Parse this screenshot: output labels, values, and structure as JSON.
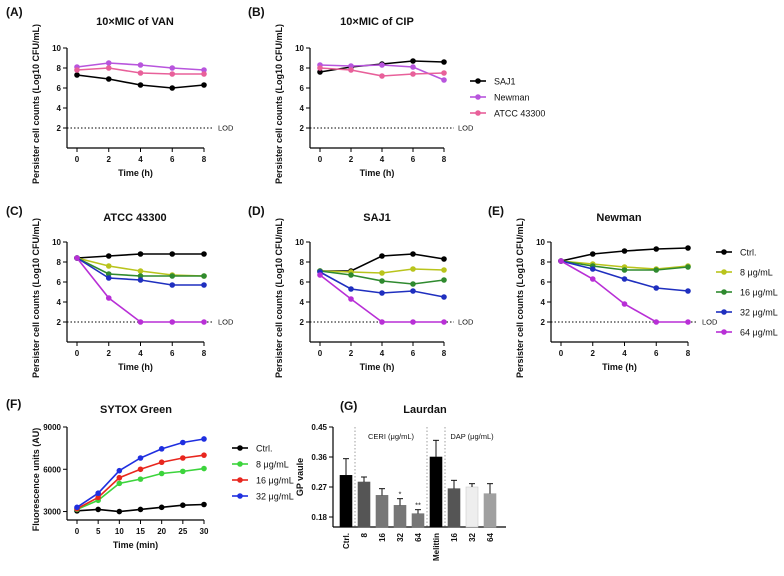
{
  "chart_data": [
    {
      "id": "A",
      "panel_label": "(A)",
      "type": "line",
      "title": "10×MIC of VAN",
      "xlabel": "Time (h)",
      "ylabel": "Persister cell counts (Log10 CFU/mL)",
      "x": [
        0,
        2,
        4,
        6,
        8
      ],
      "xticks": [
        "0",
        "2",
        "4",
        "6",
        "8"
      ],
      "ylim": [
        0,
        10
      ],
      "yticks": [
        "2",
        "4",
        "6",
        "8",
        "10"
      ],
      "lod": {
        "value": 2,
        "label": "LOD"
      },
      "series": [
        {
          "name": "SAJ1",
          "color": "#000000",
          "values": [
            7.3,
            6.9,
            6.3,
            6.0,
            6.3
          ]
        },
        {
          "name": "Newman",
          "color": "#b855dd",
          "values": [
            8.1,
            8.5,
            8.3,
            8.0,
            7.8
          ]
        },
        {
          "name": "ATCC 43300",
          "color": "#e8609a",
          "values": [
            7.8,
            8.0,
            7.5,
            7.4,
            7.4
          ]
        }
      ]
    },
    {
      "id": "B",
      "panel_label": "(B)",
      "type": "line",
      "title": "10×MIC of CIP",
      "xlabel": "Time (h)",
      "ylabel": "Persister cell counts (Log10 CFU/mL)",
      "x": [
        0,
        2,
        4,
        6,
        8
      ],
      "xticks": [
        "0",
        "2",
        "4",
        "6",
        "8"
      ],
      "ylim": [
        0,
        10
      ],
      "yticks": [
        "2",
        "4",
        "6",
        "8",
        "10"
      ],
      "lod": {
        "value": 2,
        "label": "LOD"
      },
      "legend": [
        "SAJ1",
        "Newman",
        "ATCC 43300"
      ],
      "series": [
        {
          "name": "SAJ1",
          "color": "#000000",
          "values": [
            7.6,
            8.1,
            8.4,
            8.7,
            8.6
          ]
        },
        {
          "name": "Newman",
          "color": "#b855dd",
          "values": [
            8.3,
            8.2,
            8.3,
            8.1,
            6.8
          ]
        },
        {
          "name": "ATCC 43300",
          "color": "#e8609a",
          "values": [
            8.0,
            7.8,
            7.2,
            7.4,
            7.5
          ]
        }
      ]
    },
    {
      "id": "C",
      "panel_label": "(C)",
      "type": "line",
      "title": "ATCC 43300",
      "xlabel": "Time (h)",
      "ylabel": "Persister cell counts (Log10 CFU/mL)",
      "x": [
        0,
        2,
        4,
        6,
        8
      ],
      "xticks": [
        "0",
        "2",
        "4",
        "6",
        "8"
      ],
      "ylim": [
        0,
        10
      ],
      "yticks": [
        "2",
        "4",
        "6",
        "8",
        "10"
      ],
      "lod": {
        "value": 2,
        "label": "LOD"
      },
      "series": [
        {
          "name": "Ctrl.",
          "color": "#000000",
          "values": [
            8.4,
            8.6,
            8.8,
            8.8,
            8.8
          ]
        },
        {
          "name": "8 μg/mL",
          "color": "#b9c41c",
          "values": [
            8.4,
            7.6,
            7.1,
            6.7,
            6.6
          ]
        },
        {
          "name": "16 μg/mL",
          "color": "#2f8a2f",
          "values": [
            8.4,
            6.8,
            6.6,
            6.6,
            6.6
          ]
        },
        {
          "name": "32 μg/mL",
          "color": "#1f2fbf",
          "values": [
            8.4,
            6.4,
            6.2,
            5.7,
            5.7
          ]
        },
        {
          "name": "64 μg/mL",
          "color": "#b82fd6",
          "values": [
            8.4,
            4.4,
            2.0,
            2.0,
            2.0
          ]
        }
      ]
    },
    {
      "id": "D",
      "panel_label": "(D)",
      "type": "line",
      "title": "SAJ1",
      "xlabel": "Time (h)",
      "ylabel": "Persister cell counts (Log10 CFU/mL)",
      "x": [
        0,
        2,
        4,
        6,
        8
      ],
      "xticks": [
        "0",
        "2",
        "4",
        "6",
        "8"
      ],
      "ylim": [
        0,
        10
      ],
      "yticks": [
        "2",
        "4",
        "6",
        "8",
        "10"
      ],
      "lod": {
        "value": 2,
        "label": "LOD"
      },
      "series": [
        {
          "name": "Ctrl.",
          "color": "#000000",
          "values": [
            7.1,
            7.1,
            8.6,
            8.8,
            8.3
          ]
        },
        {
          "name": "8 μg/mL",
          "color": "#b9c41c",
          "values": [
            7.1,
            7.0,
            6.9,
            7.3,
            7.2
          ]
        },
        {
          "name": "16 μg/mL",
          "color": "#2f8a2f",
          "values": [
            7.1,
            6.7,
            6.1,
            5.8,
            6.2
          ]
        },
        {
          "name": "32 μg/mL",
          "color": "#1f2fbf",
          "values": [
            7.0,
            5.3,
            4.9,
            5.1,
            4.5
          ]
        },
        {
          "name": "64 μg/mL",
          "color": "#b82fd6",
          "values": [
            6.7,
            4.3,
            2.0,
            2.0,
            2.0
          ]
        }
      ]
    },
    {
      "id": "E",
      "panel_label": "(E)",
      "type": "line",
      "title": "Newman",
      "xlabel": "Time (h)",
      "ylabel": "Persister cell counts (Log10 CFU/mL)",
      "x": [
        0,
        2,
        4,
        6,
        8
      ],
      "xticks": [
        "0",
        "2",
        "4",
        "6",
        "8"
      ],
      "ylim": [
        0,
        10
      ],
      "yticks": [
        "2",
        "4",
        "6",
        "8",
        "10"
      ],
      "lod": {
        "value": 2,
        "label": "LOD"
      },
      "legend": [
        "Ctrl.",
        "8 μg/mL",
        "16 μg/mL",
        "32 μg/mL",
        "64 μg/mL"
      ],
      "series": [
        {
          "name": "Ctrl.",
          "color": "#000000",
          "values": [
            8.1,
            8.8,
            9.1,
            9.3,
            9.4
          ]
        },
        {
          "name": "8 μg/mL",
          "color": "#b9c41c",
          "values": [
            8.1,
            7.8,
            7.5,
            7.3,
            7.6
          ]
        },
        {
          "name": "16 μg/mL",
          "color": "#2f8a2f",
          "values": [
            8.1,
            7.6,
            7.2,
            7.2,
            7.5
          ]
        },
        {
          "name": "32 μg/mL",
          "color": "#1f2fbf",
          "values": [
            8.1,
            7.3,
            6.3,
            5.4,
            5.1
          ]
        },
        {
          "name": "64 μg/mL",
          "color": "#b82fd6",
          "values": [
            8.1,
            6.3,
            3.8,
            2.0,
            2.0
          ]
        }
      ]
    },
    {
      "id": "F",
      "panel_label": "(F)",
      "type": "line",
      "title": "SYTOX Green",
      "xlabel": "Time (min)",
      "ylabel": "Fluorescence units (AU)",
      "x": [
        0,
        5,
        10,
        15,
        20,
        25,
        30
      ],
      "xticks": [
        "0",
        "5",
        "10",
        "15",
        "20",
        "25",
        "30"
      ],
      "ylim": [
        2400,
        9000
      ],
      "yticks": [
        "3000",
        "6000",
        "9000"
      ],
      "legend": [
        "Ctrl.",
        "8 μg/mL",
        "16 μg/mL",
        "32 μg/mL"
      ],
      "series": [
        {
          "name": "Ctrl.",
          "color": "#000000",
          "values": [
            3050,
            3150,
            3000,
            3150,
            3300,
            3450,
            3500
          ]
        },
        {
          "name": "8 μg/mL",
          "color": "#3cd43c",
          "values": [
            3150,
            3800,
            5000,
            5300,
            5700,
            5850,
            6050
          ]
        },
        {
          "name": "16 μg/mL",
          "color": "#e8261e",
          "values": [
            3200,
            4000,
            5400,
            6000,
            6500,
            6800,
            7000
          ]
        },
        {
          "name": "32 μg/mL",
          "color": "#1f2fe0",
          "values": [
            3300,
            4300,
            5900,
            6800,
            7450,
            7900,
            8150
          ]
        }
      ]
    },
    {
      "id": "G",
      "panel_label": "(G)",
      "type": "bar",
      "title": "Laurdan",
      "xlabel": "",
      "ylabel": "GP vaule",
      "ylim": [
        0.15,
        0.45
      ],
      "yticks": [
        "0.18",
        "0.27",
        "0.36",
        "0.45"
      ],
      "categories": [
        "Ctrl.",
        "8",
        "16",
        "32",
        "64",
        "Melittin",
        "16",
        "32",
        "64"
      ],
      "values": [
        0.305,
        0.285,
        0.245,
        0.215,
        0.19,
        0.36,
        0.265,
        0.27,
        0.25
      ],
      "errors": [
        0.05,
        0.015,
        0.02,
        0.02,
        0.012,
        0.05,
        0.025,
        0.01,
        0.03
      ],
      "colors": [
        "#000000",
        "#555555",
        "#777777",
        "#777777",
        "#777777",
        "#000000",
        "#555555",
        "#eeeeee",
        "#a0a0a0"
      ],
      "significance": [
        "",
        "",
        "",
        "*",
        "**",
        "",
        "",
        "",
        ""
      ],
      "group_labels": [
        "CERI (μg/mL)",
        "DAP (μg/mL)"
      ]
    }
  ]
}
